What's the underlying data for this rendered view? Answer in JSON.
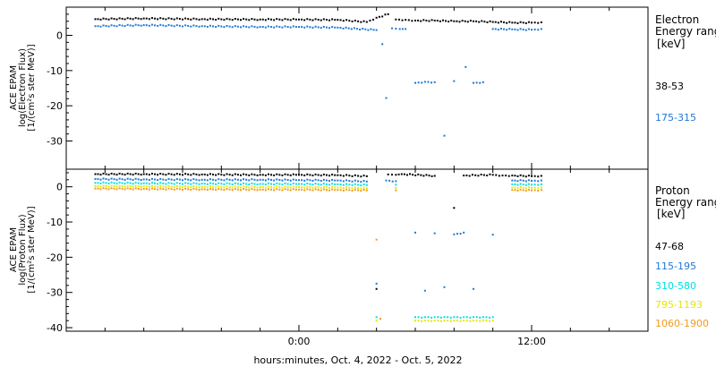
{
  "colors": {
    "black": "#000000",
    "blue": "#1f78d4",
    "cyan": "#00e0e0",
    "yellow": "#e6e600",
    "orange": "#f29a1a"
  },
  "chart_data": [
    {
      "type": "scatter",
      "panel": "electron",
      "ylabel_lines": [
        "ACE EPAM",
        "log(Electron Flux)",
        "[1/(cm²s ster MeV)]"
      ],
      "legend_lines": [
        "Electron",
        "Energy ranges",
        "[keV]"
      ],
      "ylim": [
        -38,
        8
      ],
      "yticks": [
        0,
        -10,
        -20,
        -30
      ],
      "xlim": [
        -12,
        18
      ],
      "series": [
        {
          "name": "38-53",
          "color": "#000000",
          "x": [
            -10.5,
            -8,
            -5,
            -2,
            0,
            2,
            3.5,
            4,
            4.6,
            5,
            5.5,
            6,
            7,
            8,
            9,
            10,
            11,
            12,
            12.5
          ],
          "y": [
            4.6,
            4.8,
            4.6,
            4.5,
            4.5,
            4.4,
            3.8,
            5,
            6,
            4.5,
            4.4,
            4.2,
            4.2,
            4.0,
            4.0,
            3.8,
            3.6,
            3.6,
            3.7
          ]
        },
        {
          "name": "175-315",
          "color": "#1f78d4",
          "x": [
            -10.5,
            -8,
            -5,
            -2,
            0,
            2,
            4,
            4.3,
            4.5,
            4.8,
            5.2,
            5.5,
            6,
            6.5,
            7,
            7.5,
            8,
            8.6,
            9,
            9.5,
            10,
            11,
            12,
            12.5
          ],
          "y": [
            2.6,
            2.9,
            2.6,
            2.4,
            2.4,
            2.2,
            1.5,
            -2.5,
            -17.8,
            2.0,
            1.8,
            1.8,
            -13.5,
            -13.2,
            -13.3,
            -28.5,
            -13.0,
            -9.0,
            -13.5,
            -13.3,
            1.8,
            1.7,
            1.6,
            1.8
          ]
        }
      ]
    },
    {
      "type": "scatter",
      "panel": "proton",
      "ylabel_lines": [
        "ACE EPAM",
        "log(Proton Flux)",
        "[1/(cm²s ster MeV)]"
      ],
      "legend_lines": [
        "Proton",
        "Energy ranges",
        "[keV]"
      ],
      "ylim": [
        -41,
        5
      ],
      "yticks": [
        0,
        -10,
        -20,
        -30,
        -40
      ],
      "xtick_labels": [
        "0:00",
        "12:00"
      ],
      "xtick_values": [
        0,
        12
      ],
      "xlim": [
        -12,
        18
      ],
      "xlabel": "hours:minutes, Oct.  4, 2022 - Oct.  5, 2022",
      "series": [
        {
          "name": "47-68",
          "color": "#000000",
          "x": [
            -10.5,
            -8,
            -5,
            -2,
            0,
            2,
            3.5,
            4,
            4.6,
            5,
            5.3,
            7,
            8,
            8.5,
            10,
            10.5,
            11,
            12,
            12.5
          ],
          "y": [
            3.6,
            3.6,
            3.5,
            3.4,
            3.4,
            3.3,
            3.0,
            -29,
            3.5,
            3.4,
            3.6,
            3.1,
            -6,
            3.2,
            3.4,
            3.2,
            3.2,
            3.0,
            3.1
          ]
        },
        {
          "name": "115-195",
          "color": "#1f78d4",
          "x": [
            -10.5,
            -8,
            -5,
            -2,
            0,
            2,
            3.5,
            4,
            4.5,
            5,
            6,
            6.5,
            7,
            7.5,
            8,
            8.5,
            9,
            10,
            11,
            12,
            12.5
          ],
          "y": [
            2.2,
            2.1,
            2.0,
            2.0,
            1.9,
            1.8,
            1.5,
            -27.5,
            1.8,
            1.6,
            -13.0,
            -29.5,
            -13.2,
            -28.5,
            -13.5,
            -13.0,
            -29,
            -13.6,
            1.8,
            1.7,
            1.8
          ]
        },
        {
          "name": "310-580",
          "color": "#00e0e0",
          "x": [
            -10.5,
            -8,
            -5,
            -2,
            0,
            2,
            3.5,
            4,
            5,
            6,
            6.5,
            7,
            7.5,
            8,
            8.5,
            9,
            9.5,
            10,
            11,
            12,
            12.5
          ],
          "y": [
            1.1,
            1.0,
            0.9,
            0.8,
            0.8,
            0.7,
            0.5,
            -37,
            0.6,
            -37,
            -37,
            -37,
            -37,
            -37,
            -37,
            -37,
            -37,
            -37,
            0.7,
            0.6,
            0.7
          ]
        },
        {
          "name": "795-1193",
          "color": "#e6e600",
          "x": [
            -10.5,
            -8,
            -5,
            -2,
            0,
            2,
            3.5,
            4,
            5,
            6,
            6.5,
            7,
            7.5,
            8,
            8.5,
            9,
            9.5,
            10,
            11,
            12,
            12.5
          ],
          "y": [
            0.2,
            0.1,
            0.0,
            -0.1,
            -0.1,
            -0.2,
            -0.4,
            -38,
            -0.3,
            -38,
            -38,
            -38,
            -38,
            -38,
            -38,
            -38,
            -38,
            -38,
            -0.2,
            -0.3,
            -0.2
          ]
        },
        {
          "name": "1060-1900",
          "color": "#f29a1a",
          "x": [
            -10.5,
            -8,
            -5,
            -2,
            0,
            2,
            3.5,
            4,
            4.2,
            5,
            11,
            12,
            12.5
          ],
          "y": [
            -0.5,
            -0.6,
            -0.7,
            -0.8,
            -0.8,
            -0.9,
            -1.0,
            -15,
            -37.5,
            -1.0,
            -0.9,
            -1.0,
            -0.9
          ]
        }
      ]
    }
  ]
}
